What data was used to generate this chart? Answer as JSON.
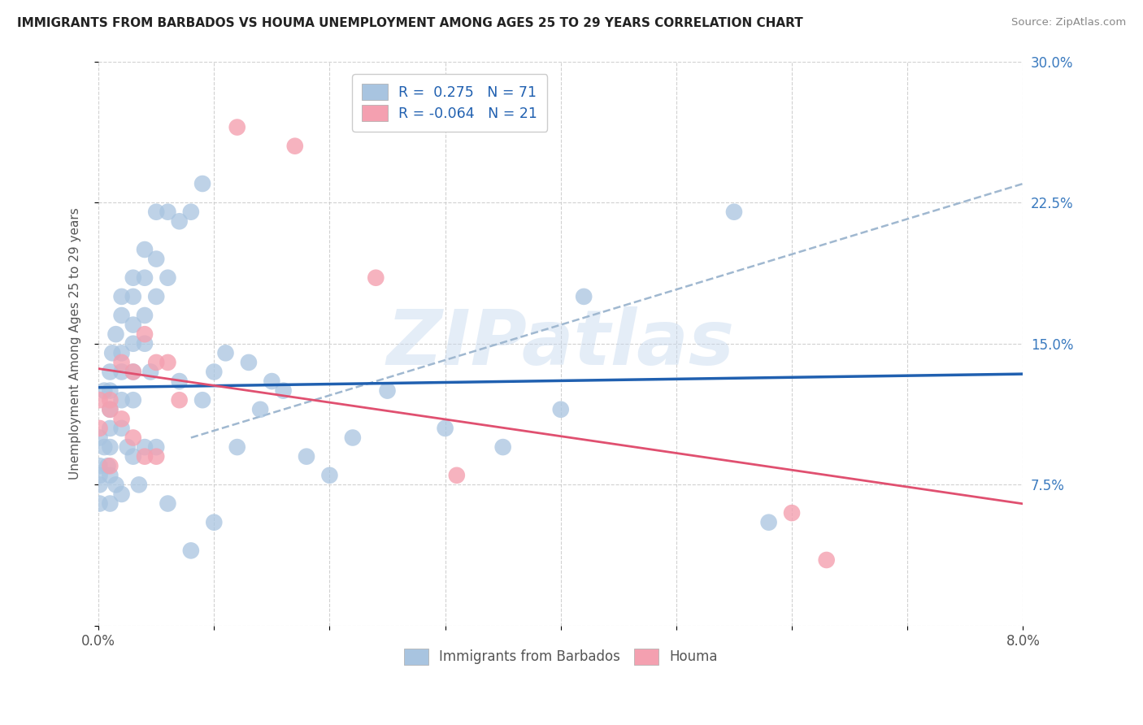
{
  "title": "IMMIGRANTS FROM BARBADOS VS HOUMA UNEMPLOYMENT AMONG AGES 25 TO 29 YEARS CORRELATION CHART",
  "source": "Source: ZipAtlas.com",
  "ylabel": "Unemployment Among Ages 25 to 29 years",
  "xlabel_barbados": "Immigrants from Barbados",
  "xlabel_houma": "Houma",
  "xlim": [
    0.0,
    0.08
  ],
  "ylim": [
    0.0,
    0.3
  ],
  "r_barbados": 0.275,
  "n_barbados": 71,
  "r_houma": -0.064,
  "n_houma": 21,
  "color_barbados": "#a8c4e0",
  "color_barbados_line": "#2060b0",
  "color_houma": "#f4a0b0",
  "color_houma_line": "#e05070",
  "color_dashed": "#a0b8d0",
  "watermark": "ZIPatlas",
  "barbados_x": [
    0.0001,
    0.0001,
    0.0001,
    0.0001,
    0.0001,
    0.0005,
    0.0005,
    0.0008,
    0.001,
    0.001,
    0.001,
    0.001,
    0.001,
    0.001,
    0.001,
    0.0012,
    0.0015,
    0.0015,
    0.002,
    0.002,
    0.002,
    0.002,
    0.002,
    0.002,
    0.002,
    0.0025,
    0.003,
    0.003,
    0.003,
    0.003,
    0.003,
    0.003,
    0.003,
    0.0035,
    0.004,
    0.004,
    0.004,
    0.004,
    0.004,
    0.0045,
    0.005,
    0.005,
    0.005,
    0.005,
    0.006,
    0.006,
    0.006,
    0.007,
    0.007,
    0.008,
    0.008,
    0.009,
    0.009,
    0.01,
    0.01,
    0.011,
    0.012,
    0.013,
    0.014,
    0.015,
    0.016,
    0.018,
    0.02,
    0.022,
    0.025,
    0.03,
    0.035,
    0.04,
    0.042,
    0.055,
    0.058
  ],
  "barbados_y": [
    0.1,
    0.085,
    0.08,
    0.075,
    0.065,
    0.125,
    0.095,
    0.085,
    0.135,
    0.125,
    0.115,
    0.105,
    0.095,
    0.08,
    0.065,
    0.145,
    0.155,
    0.075,
    0.175,
    0.165,
    0.145,
    0.135,
    0.12,
    0.105,
    0.07,
    0.095,
    0.185,
    0.175,
    0.16,
    0.15,
    0.135,
    0.12,
    0.09,
    0.075,
    0.2,
    0.185,
    0.165,
    0.15,
    0.095,
    0.135,
    0.22,
    0.195,
    0.175,
    0.095,
    0.22,
    0.185,
    0.065,
    0.215,
    0.13,
    0.22,
    0.04,
    0.235,
    0.12,
    0.135,
    0.055,
    0.145,
    0.095,
    0.14,
    0.115,
    0.13,
    0.125,
    0.09,
    0.08,
    0.1,
    0.125,
    0.105,
    0.095,
    0.115,
    0.175,
    0.22,
    0.055
  ],
  "houma_x": [
    0.0001,
    0.0001,
    0.001,
    0.001,
    0.001,
    0.002,
    0.002,
    0.003,
    0.003,
    0.004,
    0.004,
    0.005,
    0.005,
    0.006,
    0.007,
    0.012,
    0.017,
    0.024,
    0.031,
    0.06,
    0.063
  ],
  "houma_y": [
    0.12,
    0.105,
    0.12,
    0.115,
    0.085,
    0.14,
    0.11,
    0.135,
    0.1,
    0.155,
    0.09,
    0.14,
    0.09,
    0.14,
    0.12,
    0.265,
    0.255,
    0.185,
    0.08,
    0.06,
    0.035
  ]
}
